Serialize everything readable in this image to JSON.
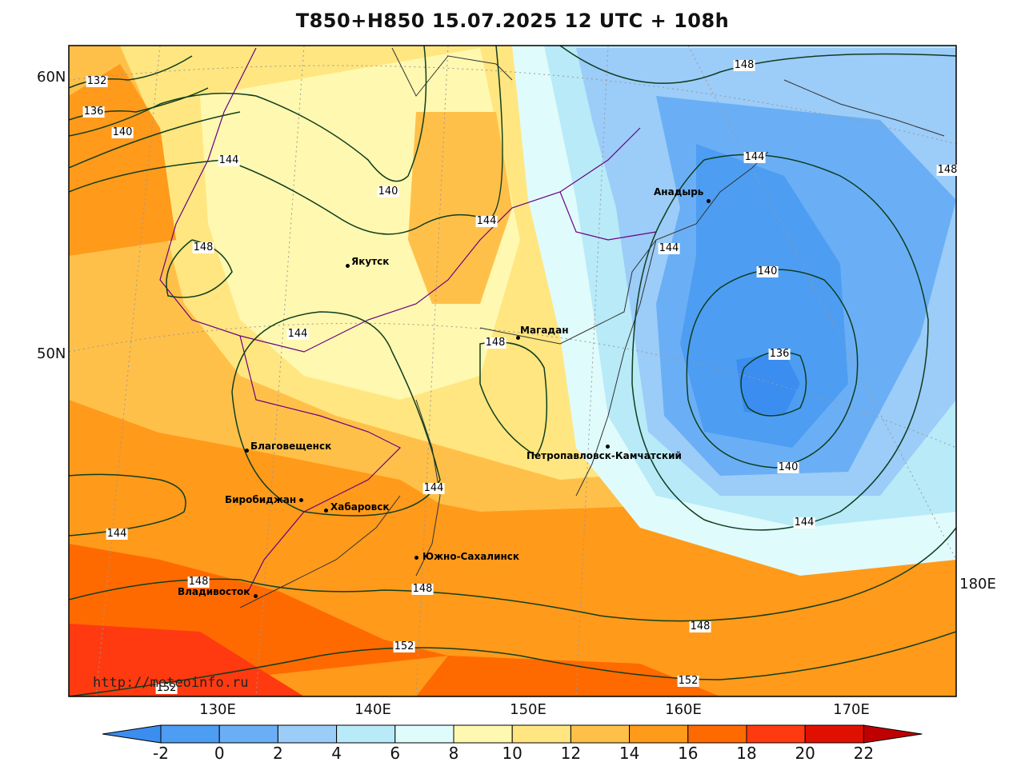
{
  "title": "T850+H850 15.07.2025 12 UTC + 108h",
  "watermark": "http://meteoinfo.ru",
  "lat_labels": [
    "60N",
    "50N"
  ],
  "lon_labels": [
    "130E",
    "140E",
    "150E",
    "160E",
    "170E",
    "180E"
  ],
  "colorbar": {
    "labels": [
      "-2",
      "0",
      "2",
      "4",
      "6",
      "8",
      "10",
      "12",
      "14",
      "16",
      "18",
      "20",
      "22"
    ],
    "colors": [
      "#3b8df0",
      "#4d9df2",
      "#6aaff5",
      "#9cccf8",
      "#b8eaf8",
      "#e0fbfb",
      "#fff8b0",
      "#ffe680",
      "#ffc04a",
      "#ff9a1a",
      "#ff6a00",
      "#ff3a10",
      "#e01000",
      "#c00000"
    ]
  },
  "isolines": [
    {
      "label": "132"
    },
    {
      "label": "136"
    },
    {
      "label": "140"
    },
    {
      "label": "144"
    },
    {
      "label": "140"
    },
    {
      "label": "144"
    },
    {
      "label": "148"
    },
    {
      "label": "148"
    },
    {
      "label": "144"
    },
    {
      "label": "148"
    },
    {
      "label": "144"
    },
    {
      "label": "140"
    },
    {
      "label": "136"
    },
    {
      "label": "140"
    },
    {
      "label": "144"
    },
    {
      "label": "144"
    },
    {
      "label": "144"
    },
    {
      "label": "148"
    },
    {
      "label": "148"
    },
    {
      "label": "152"
    },
    {
      "label": "152"
    },
    {
      "label": "152"
    },
    {
      "label": "148"
    },
    {
      "label": "148"
    }
  ],
  "cities": [
    {
      "name": "Якутск"
    },
    {
      "name": "Магадан"
    },
    {
      "name": "Анадырь"
    },
    {
      "name": "Петропавловск-Камчатский"
    },
    {
      "name": "Благовещенск"
    },
    {
      "name": "Биробиджан"
    },
    {
      "name": "Хабаровск"
    },
    {
      "name": "Южно-Сахалинск"
    },
    {
      "name": "Владивосток"
    }
  ]
}
